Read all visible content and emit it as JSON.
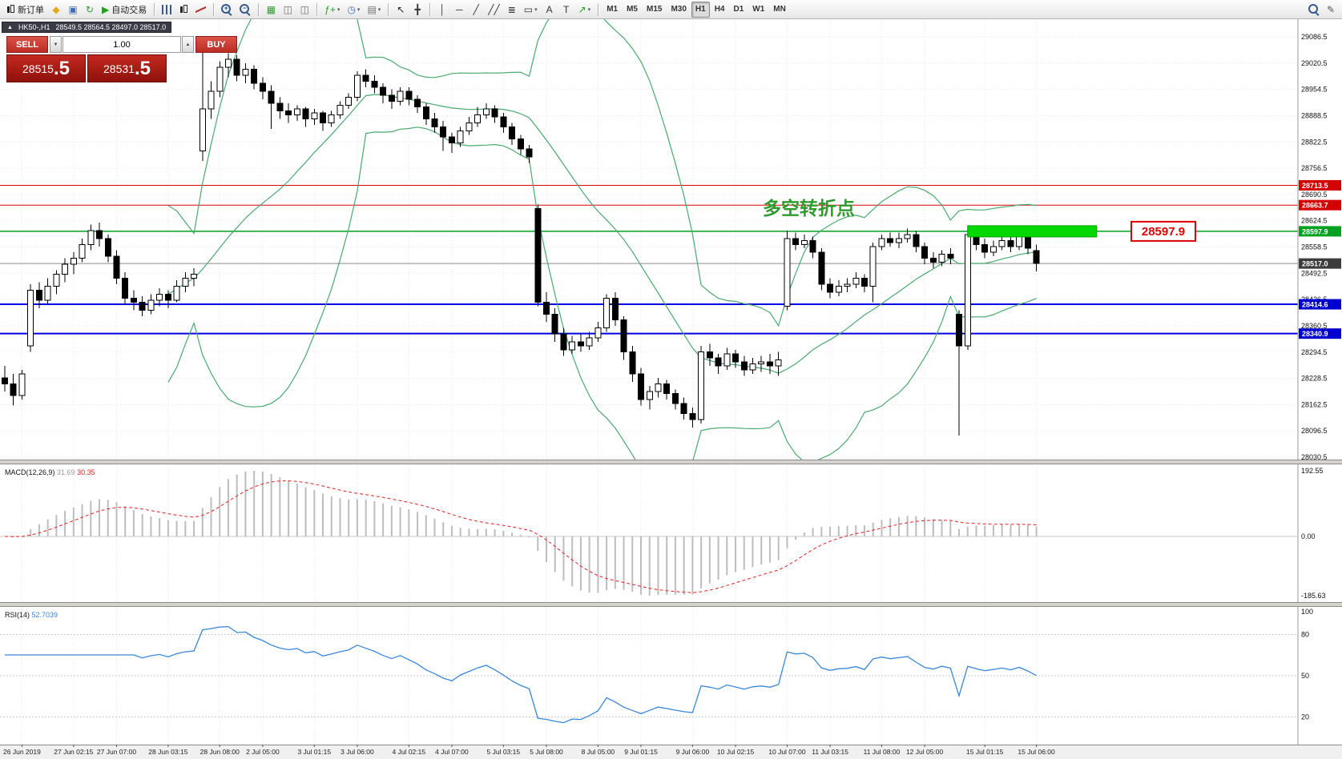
{
  "toolbar": {
    "groups": [
      {
        "items": [
          {
            "kind": "labeled",
            "name": "new-order-button",
            "css": "ico-candle",
            "label": "新订单"
          },
          {
            "kind": "icon",
            "name": "charts-icon",
            "glyph": "◆",
            "color": "#e6a817"
          },
          {
            "kind": "icon",
            "name": "profile-icon",
            "glyph": "▣",
            "color": "#3f6fae"
          },
          {
            "kind": "icon",
            "name": "refresh-icon",
            "glyph": "↻",
            "color": "#2f9e2f"
          },
          {
            "kind": "labeled",
            "name": "autotrade-button",
            "glyph": "▶",
            "color": "#18a318",
            "label": "自动交易"
          }
        ]
      },
      {
        "items": [
          {
            "kind": "css",
            "name": "bar-chart-type-button",
            "css": "ico-bars"
          },
          {
            "kind": "css",
            "name": "candlestick-chart-type-button",
            "css": "ico-candle"
          },
          {
            "kind": "css",
            "name": "line-chart-type-button",
            "css": "ico-line"
          }
        ]
      },
      {
        "items": [
          {
            "kind": "css",
            "name": "zoom-in-button",
            "css": "ico-zoomin",
            "sign": "+"
          },
          {
            "kind": "css",
            "name": "zoom-out-button",
            "css": "ico-zoomout",
            "sign": "−"
          }
        ]
      },
      {
        "items": [
          {
            "kind": "icon",
            "name": "tile-windows-button",
            "glyph": "▦",
            "color": "#2f9e2f"
          },
          {
            "kind": "icon",
            "name": "cascade-windows-button",
            "glyph": "◫",
            "color": "#6f6f6f"
          },
          {
            "kind": "icon",
            "name": "arrange-windows-button",
            "glyph": "◫",
            "color": "#6f6f6f"
          }
        ]
      },
      {
        "items": [
          {
            "kind": "icon",
            "name": "indicators-button",
            "glyph": "ƒ+",
            "color": "#18a318",
            "dropdown": true
          },
          {
            "kind": "icon",
            "name": "periods-button",
            "glyph": "◷",
            "color": "#3f6fae",
            "dropdown": true
          },
          {
            "kind": "icon",
            "name": "templates-button",
            "glyph": "▤",
            "color": "#6f6f6f",
            "dropdown": true
          }
        ]
      },
      {
        "items": [
          {
            "kind": "icon",
            "name": "cursor-tool-button",
            "glyph": "↖",
            "color": "#222"
          },
          {
            "kind": "icon",
            "name": "crosshair-tool-button",
            "glyph": "╋",
            "color": "#333"
          }
        ]
      },
      {
        "items": [
          {
            "kind": "icon",
            "name": "vertical-line-tool-button",
            "glyph": "│",
            "color": "#333"
          },
          {
            "kind": "icon",
            "name": "horizontal-line-tool-button",
            "glyph": "─",
            "color": "#333"
          },
          {
            "kind": "icon",
            "name": "trendline-tool-button",
            "glyph": "╱",
            "color": "#333"
          },
          {
            "kind": "icon",
            "name": "channel-tool-button",
            "glyph": "╱╱",
            "color": "#333"
          },
          {
            "kind": "icon",
            "name": "fibonacci-tool-button",
            "glyph": "≣",
            "color": "#333"
          },
          {
            "kind": "icon",
            "name": "shapes-tool-button",
            "glyph": "▭",
            "color": "#333",
            "dropdown": true
          },
          {
            "kind": "icon",
            "name": "text-tool-button",
            "glyph": "A",
            "color": "#333"
          },
          {
            "kind": "icon",
            "name": "text-label-tool-button",
            "glyph": "T",
            "color": "#333"
          },
          {
            "kind": "icon",
            "name": "arrows-tool-button",
            "glyph": "↗",
            "color": "#18a318",
            "dropdown": true
          }
        ]
      },
      {
        "items": [
          {
            "kind": "tf",
            "name": "timeframe-m1-button",
            "label": "M1",
            "active": false
          },
          {
            "kind": "tf",
            "name": "timeframe-m5-button",
            "label": "M5",
            "active": false
          },
          {
            "kind": "tf",
            "name": "timeframe-m15-button",
            "label": "M15",
            "active": false
          },
          {
            "kind": "tf",
            "name": "timeframe-m30-button",
            "label": "M30",
            "active": false
          },
          {
            "kind": "tf",
            "name": "timeframe-h1-button",
            "label": "H1",
            "active": true
          },
          {
            "kind": "tf",
            "name": "timeframe-h4-button",
            "label": "H4",
            "active": false
          },
          {
            "kind": "tf",
            "name": "timeframe-d1-button",
            "label": "D1",
            "active": false
          },
          {
            "kind": "tf",
            "name": "timeframe-w1-button",
            "label": "W1",
            "active": false
          },
          {
            "kind": "tf",
            "name": "timeframe-mn-button",
            "label": "MN",
            "active": false
          }
        ]
      }
    ],
    "right_items": [
      {
        "kind": "css",
        "name": "search-button",
        "css": "ico-zoom"
      },
      {
        "kind": "icon",
        "name": "edit-button",
        "glyph": "✎",
        "color": "#555"
      }
    ]
  },
  "symbol_bar": {
    "collapse_glyph": "▲",
    "title": "HK50-,H1",
    "ohlc": "28549.5 28564.5 28497.0 28517.0"
  },
  "trade_panel": {
    "sell_label": "SELL",
    "buy_label": "BUY",
    "volume": "1.00",
    "vol_down_glyph": "▼",
    "vol_up_glyph": "▲",
    "sell_price_main": "28515",
    "sell_price_frac": ".5",
    "buy_price_main": "28531",
    "buy_price_frac": ".5"
  },
  "chart_data": {
    "type": "candlestick",
    "symbol": "HK50-",
    "timeframe": "H1",
    "price_ticks": [
      29086.5,
      29020.5,
      28954.5,
      28888.5,
      28822.5,
      28756.5,
      28690.5,
      28624.5,
      28558.5,
      28492.5,
      28426.5,
      28360.5,
      28294.5,
      28228.5,
      28162.5,
      28096.5,
      28030.5
    ],
    "ohlc": [
      [
        28230,
        28260,
        28195,
        28215
      ],
      [
        28215,
        28240,
        28160,
        28185
      ],
      [
        28185,
        28250,
        28175,
        28240
      ],
      [
        28310,
        28465,
        28295,
        28450
      ],
      [
        28450,
        28470,
        28405,
        28425
      ],
      [
        28425,
        28480,
        28415,
        28460
      ],
      [
        28460,
        28500,
        28440,
        28490
      ],
      [
        28490,
        28530,
        28470,
        28515
      ],
      [
        28515,
        28545,
        28490,
        28530
      ],
      [
        28530,
        28580,
        28520,
        28565
      ],
      [
        28565,
        28615,
        28550,
        28600
      ],
      [
        28600,
        28620,
        28560,
        28580
      ],
      [
        28580,
        28590,
        28520,
        28535
      ],
      [
        28535,
        28550,
        28465,
        28480
      ],
      [
        28480,
        28495,
        28415,
        28430
      ],
      [
        28430,
        28450,
        28400,
        28420
      ],
      [
        28420,
        28435,
        28385,
        28400
      ],
      [
        28400,
        28440,
        28390,
        28425
      ],
      [
        28425,
        28455,
        28410,
        28440
      ],
      [
        28440,
        28450,
        28405,
        28425
      ],
      [
        28425,
        28475,
        28420,
        28460
      ],
      [
        28460,
        28495,
        28445,
        28480
      ],
      [
        28480,
        28505,
        28460,
        28490
      ],
      [
        28800,
        29055,
        28775,
        28905
      ],
      [
        28905,
        28975,
        28880,
        28950
      ],
      [
        28950,
        29025,
        28935,
        29010
      ],
      [
        29010,
        29045,
        28985,
        29030
      ],
      [
        29030,
        29040,
        28975,
        28990
      ],
      [
        28990,
        29020,
        28970,
        29005
      ],
      [
        29005,
        29015,
        28955,
        28970
      ],
      [
        28970,
        28985,
        28930,
        28950
      ],
      [
        28950,
        28965,
        28855,
        28920
      ],
      [
        28920,
        28935,
        28880,
        28900
      ],
      [
        28900,
        28920,
        28870,
        28890
      ],
      [
        28890,
        28915,
        28875,
        28905
      ],
      [
        28905,
        28910,
        28860,
        28880
      ],
      [
        28880,
        28905,
        28865,
        28895
      ],
      [
        28895,
        28900,
        28850,
        28870
      ],
      [
        28870,
        28900,
        28860,
        28890
      ],
      [
        28890,
        28925,
        28880,
        28915
      ],
      [
        28915,
        28945,
        28905,
        28935
      ],
      [
        28935,
        29000,
        28925,
        28990
      ],
      [
        28990,
        29005,
        28960,
        28975
      ],
      [
        28975,
        28990,
        28945,
        28960
      ],
      [
        28960,
        28970,
        28920,
        28940
      ],
      [
        28940,
        28955,
        28905,
        28925
      ],
      [
        28925,
        28960,
        28915,
        28950
      ],
      [
        28950,
        28960,
        28915,
        28930
      ],
      [
        28930,
        28940,
        28895,
        28910
      ],
      [
        28910,
        28920,
        28865,
        28880
      ],
      [
        28880,
        28895,
        28845,
        28860
      ],
      [
        28860,
        28875,
        28800,
        28835
      ],
      [
        28835,
        28845,
        28795,
        28820
      ],
      [
        28820,
        28860,
        28810,
        28850
      ],
      [
        28850,
        28885,
        28840,
        28870
      ],
      [
        28870,
        28910,
        28860,
        28890
      ],
      [
        28890,
        28920,
        28880,
        28905
      ],
      [
        28905,
        28915,
        28870,
        28885
      ],
      [
        28885,
        28895,
        28845,
        28860
      ],
      [
        28860,
        28870,
        28815,
        28830
      ],
      [
        28830,
        28840,
        28790,
        28805
      ],
      [
        28805,
        28815,
        28770,
        28785
      ],
      [
        28655,
        28665,
        28410,
        28420
      ],
      [
        28420,
        28445,
        28370,
        28390
      ],
      [
        28390,
        28405,
        28320,
        28340
      ],
      [
        28340,
        28355,
        28285,
        28300
      ],
      [
        28300,
        28335,
        28290,
        28320
      ],
      [
        28320,
        28340,
        28295,
        28310
      ],
      [
        28310,
        28345,
        28300,
        28330
      ],
      [
        28330,
        28370,
        28320,
        28355
      ],
      [
        28355,
        28440,
        28345,
        28430
      ],
      [
        28430,
        28445,
        28360,
        28375
      ],
      [
        28375,
        28385,
        28275,
        28295
      ],
      [
        28295,
        28310,
        28220,
        28240
      ],
      [
        28240,
        28255,
        28160,
        28175
      ],
      [
        28175,
        28210,
        28150,
        28195
      ],
      [
        28195,
        28230,
        28180,
        28215
      ],
      [
        28215,
        28225,
        28175,
        28190
      ],
      [
        28190,
        28200,
        28150,
        28165
      ],
      [
        28165,
        28180,
        28125,
        28140
      ],
      [
        28140,
        28155,
        28105,
        28125
      ],
      [
        28125,
        28310,
        28115,
        28295
      ],
      [
        28295,
        28315,
        28260,
        28280
      ],
      [
        28280,
        28290,
        28240,
        28260
      ],
      [
        28260,
        28305,
        28250,
        28290
      ],
      [
        28290,
        28300,
        28255,
        28270
      ],
      [
        28270,
        28285,
        28235,
        28250
      ],
      [
        28250,
        28280,
        28240,
        28265
      ],
      [
        28265,
        28285,
        28245,
        28270
      ],
      [
        28270,
        28290,
        28240,
        28260
      ],
      [
        28260,
        28295,
        28235,
        28275
      ],
      [
        28410,
        28600,
        28400,
        28580
      ],
      [
        28580,
        28595,
        28550,
        28565
      ],
      [
        28565,
        28590,
        28555,
        28575
      ],
      [
        28575,
        28585,
        28530,
        28545
      ],
      [
        28545,
        28555,
        28450,
        28465
      ],
      [
        28465,
        28480,
        28430,
        28445
      ],
      [
        28445,
        28475,
        28435,
        28460
      ],
      [
        28460,
        28480,
        28445,
        28465
      ],
      [
        28465,
        28495,
        28455,
        28480
      ],
      [
        28480,
        28490,
        28445,
        28460
      ],
      [
        28460,
        28570,
        28420,
        28560
      ],
      [
        28560,
        28590,
        28550,
        28580
      ],
      [
        28580,
        28595,
        28560,
        28570
      ],
      [
        28570,
        28595,
        28555,
        28580
      ],
      [
        28580,
        28605,
        28570,
        28590
      ],
      [
        28590,
        28600,
        28545,
        28560
      ],
      [
        28560,
        28570,
        28515,
        28530
      ],
      [
        28530,
        28545,
        28505,
        28520
      ],
      [
        28520,
        28550,
        28510,
        28540
      ],
      [
        28540,
        28555,
        28515,
        28530
      ],
      [
        28390,
        28400,
        28085,
        28310
      ],
      [
        28310,
        28605,
        28300,
        28590
      ],
      [
        28590,
        28600,
        28550,
        28565
      ],
      [
        28565,
        28580,
        28530,
        28545
      ],
      [
        28545,
        28575,
        28535,
        28560
      ],
      [
        28560,
        28590,
        28550,
        28575
      ],
      [
        28575,
        28585,
        28545,
        28560
      ],
      [
        28560,
        28600,
        28550,
        28585
      ],
      [
        28585,
        28595,
        28540,
        28555
      ],
      [
        28549.5,
        28564.5,
        28497.0,
        28517.0
      ]
    ],
    "time_labels": [
      {
        "i": 2,
        "t": "26 Jun 2019"
      },
      {
        "i": 8,
        "t": "27 Jun 02:15"
      },
      {
        "i": 13,
        "t": "27 Jun 07:00"
      },
      {
        "i": 19,
        "t": "28 Jun 03:15"
      },
      {
        "i": 25,
        "t": "28 Jun 08:00"
      },
      {
        "i": 30,
        "t": "2 Jul 05:00"
      },
      {
        "i": 36,
        "t": "3 Jul 01:15"
      },
      {
        "i": 41,
        "t": "3 Jul 06:00"
      },
      {
        "i": 47,
        "t": "4 Jul 02:15"
      },
      {
        "i": 52,
        "t": "4 Jul 07:00"
      },
      {
        "i": 58,
        "t": "5 Jul 03:15"
      },
      {
        "i": 63,
        "t": "5 Jul 08:00"
      },
      {
        "i": 69,
        "t": "8 Jul 05:00"
      },
      {
        "i": 74,
        "t": "9 Jul 01:15"
      },
      {
        "i": 80,
        "t": "9 Jul 06:00"
      },
      {
        "i": 85,
        "t": "10 Jul 02:15"
      },
      {
        "i": 91,
        "t": "10 Jul 07:00"
      },
      {
        "i": 96,
        "t": "11 Jul 03:15"
      },
      {
        "i": 102,
        "t": "11 Jul 08:00"
      },
      {
        "i": 107,
        "t": "12 Jul 05:00"
      },
      {
        "i": 114,
        "t": "15 Jul 01:15"
      },
      {
        "i": 120,
        "t": "15 Jul 06:00"
      }
    ],
    "levels": [
      {
        "price": 28713.5,
        "line": "#e00000",
        "bg": "#d40000",
        "width": 1
      },
      {
        "price": 28663.7,
        "line": "#e00000",
        "bg": "#d40000",
        "width": 1
      },
      {
        "price": 28597.9,
        "line": "#00a020",
        "bg": "#00a020",
        "width": 1.5
      },
      {
        "price": 28414.6,
        "line": "#0000e0",
        "bg": "#0000d0",
        "width": 2
      },
      {
        "price": 28340.9,
        "line": "#0000e0",
        "bg": "#0000d0",
        "width": 2
      }
    ],
    "current_price": {
      "value": 28517.0,
      "line": "#8a8a8a",
      "bg": "#3c3c3c"
    },
    "highlight": {
      "price": 28597.9,
      "from_index": 112,
      "to_index": 127,
      "color": "#00d800",
      "border": "#00a000"
    },
    "annotation": {
      "text": "多空转折点",
      "color": "#2e9b2e"
    },
    "callout": {
      "text": "28597.9",
      "color": "#e00000"
    },
    "bollinger": {
      "period": 20,
      "deviation": 2,
      "color": "#4aa96e"
    },
    "macd": {
      "label": "MACD(12,26,9)",
      "fast": 12,
      "slow": 26,
      "signal": 9,
      "value_main": "31.69",
      "value_signal": "30.35",
      "axis": [
        "192.55",
        "0.00",
        "-185.63"
      ],
      "hist_color": "#bdbdbd",
      "signal_color": "#dd2222"
    },
    "rsi": {
      "label": "RSI(14)",
      "period": 14,
      "value": "52.7039",
      "color": "#3a87d9",
      "levels": [
        80,
        50,
        20
      ],
      "axis": [
        "100",
        "80",
        "50",
        "20"
      ]
    }
  }
}
